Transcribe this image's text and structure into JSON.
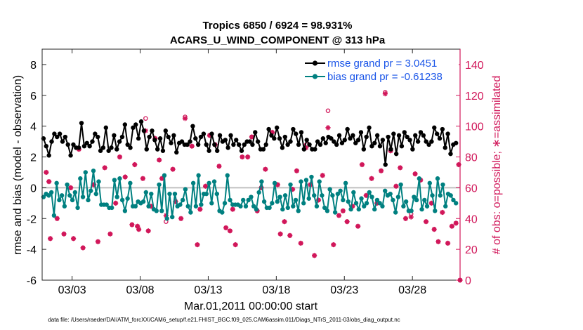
{
  "chart_data": {
    "type": "line",
    "title_line1": "Tropics 6850 / 6924 = 98.931%",
    "title_line2": "ACARS_U_WIND_COMPONENT @ 313 hPa",
    "xlabel": "Mar.01,2011 00:00:00 start",
    "ylabel_left": "rmse and bias (model - observation)",
    "ylabel_right": "# of obs: o=possible; ∗=assimilated",
    "footer": "data file: /Users/raeder/DAI/ATM_forcXX/CAM6_setup/f.e21.FHIST_BGC.f09_025.CAM6assim.011/Diags_NTrS_2011-03/obs_diag_output.nc",
    "xlim": [
      0.8,
      31.5
    ],
    "ylim_left": [
      -6,
      9
    ],
    "ylim_right": [
      0,
      150
    ],
    "x_ticks": [
      3,
      8,
      13,
      18,
      23,
      28
    ],
    "x_tick_labels": [
      "03/03",
      "03/08",
      "03/13",
      "03/18",
      "03/23",
      "03/28"
    ],
    "y_ticks_left": [
      "-6",
      "-4",
      "-2",
      "0",
      "2",
      "4",
      "6",
      "8"
    ],
    "y_ticks_right": [
      "0",
      "20",
      "40",
      "60",
      "80",
      "100",
      "120",
      "140"
    ],
    "colors": {
      "rmse": "#000000",
      "bias": "#008080",
      "count": "#d1175a",
      "zero": "#c0c0c0",
      "legend_text": "#1a55e8"
    },
    "series": [
      {
        "name": "rmse grand pr = 3.0451",
        "values": [
          3.2,
          2.7,
          2.1,
          3.0,
          3.5,
          3.3,
          3.5,
          3.0,
          3.3,
          2.8,
          2.1,
          2.8,
          2.6,
          2.6,
          4.2,
          2.7,
          2.9,
          2.7,
          3.0,
          3.5,
          3.3,
          2.4,
          2.6,
          3.9,
          2.4,
          2.6,
          3.4,
          2.5,
          3.0,
          3.3,
          4.1,
          2.8,
          2.6,
          3.9,
          4.1,
          3.2,
          4.3,
          3.7,
          2.5,
          3.3,
          3.7,
          3.1,
          2.5,
          3.2,
          2.4,
          3.7,
          3.3,
          2.9,
          3.4,
          2.3,
          2.9,
          3.0,
          2.8,
          2.8,
          3.0,
          4.0,
          3.2,
          2.8,
          3.3,
          3.5,
          2.8,
          2.4,
          3.5,
          2.8,
          2.4,
          3.4,
          3.0,
          3.1,
          2.6,
          3.4,
          2.8,
          3.1,
          2.8,
          2.4,
          2.8,
          3.0,
          3.0,
          2.8,
          3.6,
          3.0,
          2.5,
          2.5,
          2.8,
          3.8,
          3.4,
          3.2,
          3.9,
          3.2,
          2.6,
          3.3,
          2.8,
          3.0,
          3.8,
          3.5,
          2.8,
          3.6,
          2.5,
          3.1,
          2.8,
          2.5,
          2.5,
          3.0,
          2.8,
          3.2,
          2.9,
          3.3,
          3.2,
          3.0,
          2.8,
          3.4,
          2.9,
          3.1,
          3.8,
          3.2,
          3.4,
          2.9,
          3.1,
          3.6,
          2.5,
          3.3,
          3.9,
          2.7,
          2.9,
          3.4,
          2.7,
          3.1,
          1.5,
          3.3,
          2.5,
          3.5,
          2.2,
          3.4,
          2.7,
          3.6,
          3.3,
          3.1,
          2.5,
          3.4,
          3.0,
          3.6,
          3.4,
          3.0,
          2.8,
          3.0,
          3.9,
          3.5,
          3.2,
          3.8,
          2.6,
          3.5,
          2.2,
          2.8,
          2.9
        ]
      },
      {
        "name": "bias grand pr = -0.61238",
        "values": [
          -0.6,
          -0.4,
          -0.5,
          -0.3,
          -1.8,
          0.3,
          -0.8,
          -0.5,
          -1.2,
          0.2,
          -0.5,
          -0.8,
          -0.3,
          -1.3,
          0.6,
          -0.6,
          1.0,
          -0.8,
          -0.2,
          1.1,
          -0.4,
          0.4,
          -1.1,
          -1.1,
          -1.1,
          -1.3,
          -1.3,
          0.5,
          -0.6,
          0.6,
          -0.8,
          -1.5,
          -0.7,
          0.3,
          -1.2,
          -1.2,
          -0.9,
          -1.0,
          -0.9,
          -0.3,
          -1.2,
          -0.4,
          -1.4,
          -1.5,
          0.2,
          -1.5,
          0.8,
          -2.0,
          -0.4,
          -1.9,
          -0.4,
          -1.2,
          -1.1,
          -0.8,
          -0.1,
          -1.2,
          -1.6,
          0.3,
          -1.2,
          0.8,
          -1.1,
          -0.4,
          -0.4,
          0.3,
          -1.0,
          0.4,
          -0.4,
          -1.5,
          -1.6,
          -1.0,
          0.8,
          -0.8,
          -1.1,
          -1.1,
          -1.1,
          -1.2,
          -0.8,
          -1.2,
          -0.8,
          -0.6,
          -1.2,
          -1.4,
          -0.3,
          0.4,
          -0.9,
          -1.3,
          -1.3,
          -1.0,
          0.3,
          -0.9,
          -0.6,
          -1.4,
          -0.5,
          -1.3,
          0.2,
          -1.2,
          -0.8,
          -1.5,
          0.4,
          -1.0,
          0.5,
          -0.7,
          0.7,
          -0.5,
          -1.2,
          0.4,
          -0.5,
          -1.3,
          -1.5,
          -0.1,
          -0.5,
          -1.6,
          -0.4,
          -0.2,
          -0.8,
          0.3,
          -0.9,
          -1.4,
          -0.3,
          -1.0,
          -1.4,
          -0.7,
          -1.2,
          -1.0,
          -0.3,
          -0.6,
          -1.4,
          -0.8,
          -1.0,
          -1.2,
          -0.2,
          -0.5,
          -0.4,
          -0.8,
          -1.6,
          -0.6,
          0.2,
          -1.2,
          -0.9,
          -1.5,
          -1.5,
          -0.6,
          -0.8,
          0.6,
          -1.4,
          -0.8,
          -1.2,
          0.3,
          -0.5,
          -1.5,
          0.6,
          -0.5,
          0.2,
          -1.2,
          -0.4,
          -0.5,
          -0.8,
          -1.0
        ]
      }
    ],
    "obs_assimilated": [
      [
        1.1,
        70
      ],
      [
        1.3,
        64
      ],
      [
        1.4,
        27
      ],
      [
        1.9,
        40
      ],
      [
        2.4,
        30
      ],
      [
        2.9,
        60
      ],
      [
        3.1,
        27
      ],
      [
        3.5,
        85
      ],
      [
        3.8,
        21
      ],
      [
        4.6,
        62
      ],
      [
        4.9,
        25
      ],
      [
        5.4,
        73
      ],
      [
        5.8,
        30
      ],
      [
        6.2,
        50
      ],
      [
        6.5,
        80
      ],
      [
        6.9,
        67
      ],
      [
        7.4,
        36
      ],
      [
        7.6,
        75
      ],
      [
        7.8,
        35
      ],
      [
        7.9,
        33
      ],
      [
        8.2,
        66
      ],
      [
        8.4,
        97
      ],
      [
        8.6,
        32
      ],
      [
        8.8,
        48
      ],
      [
        9.1,
        92
      ],
      [
        9.4,
        78
      ],
      [
        9.6,
        66
      ],
      [
        9.9,
        42
      ],
      [
        10.4,
        72
      ],
      [
        10.6,
        51
      ],
      [
        11.0,
        40
      ],
      [
        11.3,
        105
      ],
      [
        11.8,
        87
      ],
      [
        12.2,
        23
      ],
      [
        12.4,
        46
      ],
      [
        12.8,
        61
      ],
      [
        13.1,
        94
      ],
      [
        13.5,
        88
      ],
      [
        13.8,
        74
      ],
      [
        14.3,
        34
      ],
      [
        14.6,
        32
      ],
      [
        14.8,
        46
      ],
      [
        15.0,
        23
      ],
      [
        15.5,
        80
      ],
      [
        15.9,
        80
      ],
      [
        16.2,
        93
      ],
      [
        16.6,
        45
      ],
      [
        16.9,
        60
      ],
      [
        17.2,
        72
      ],
      [
        17.7,
        96
      ],
      [
        18.1,
        62
      ],
      [
        18.3,
        30
      ],
      [
        18.6,
        38
      ],
      [
        19.0,
        29
      ],
      [
        19.2,
        59
      ],
      [
        19.5,
        71
      ],
      [
        19.8,
        24
      ],
      [
        20.2,
        86
      ],
      [
        20.5,
        62
      ],
      [
        20.8,
        16
      ],
      [
        21.1,
        52
      ],
      [
        21.4,
        68
      ],
      [
        21.8,
        99
      ],
      [
        22.2,
        23
      ],
      [
        22.6,
        42
      ],
      [
        22.9,
        45
      ],
      [
        23.2,
        38
      ],
      [
        23.6,
        48
      ],
      [
        24.0,
        35
      ],
      [
        24.3,
        75
      ],
      [
        24.6,
        55
      ],
      [
        25.0,
        66
      ],
      [
        25.4,
        50
      ],
      [
        25.7,
        71
      ],
      [
        26.0,
        121
      ],
      [
        26.4,
        84
      ],
      [
        26.8,
        61
      ],
      [
        27.1,
        73
      ],
      [
        27.5,
        40
      ],
      [
        27.9,
        41
      ],
      [
        28.2,
        69
      ],
      [
        28.6,
        65
      ],
      [
        29.0,
        38
      ],
      [
        29.4,
        50
      ],
      [
        29.6,
        33
      ],
      [
        29.9,
        25
      ],
      [
        30.2,
        44
      ],
      [
        30.6,
        24
      ],
      [
        30.9,
        35
      ],
      [
        31.2,
        37
      ],
      [
        31.4,
        75
      ],
      [
        31.5,
        0
      ]
    ],
    "obs_possible": [
      [
        1.1,
        70
      ],
      [
        1.3,
        64
      ],
      [
        1.4,
        27
      ],
      [
        1.9,
        40
      ],
      [
        2.4,
        30
      ],
      [
        2.9,
        60
      ],
      [
        3.1,
        27
      ],
      [
        3.5,
        85
      ],
      [
        3.8,
        21
      ],
      [
        4.6,
        62
      ],
      [
        4.9,
        25
      ],
      [
        5.4,
        73
      ],
      [
        5.8,
        30
      ],
      [
        6.2,
        50
      ],
      [
        6.5,
        80
      ],
      [
        6.9,
        67
      ],
      [
        7.4,
        36
      ],
      [
        7.6,
        75
      ],
      [
        7.8,
        35
      ],
      [
        7.9,
        33
      ],
      [
        8.2,
        66
      ],
      [
        8.4,
        105
      ],
      [
        8.6,
        32
      ],
      [
        8.8,
        48
      ],
      [
        9.1,
        92
      ],
      [
        9.4,
        78
      ],
      [
        9.6,
        66
      ],
      [
        9.9,
        38
      ],
      [
        10.4,
        72
      ],
      [
        10.6,
        51
      ],
      [
        11.0,
        40
      ],
      [
        11.3,
        106
      ],
      [
        11.8,
        87
      ],
      [
        12.2,
        23
      ],
      [
        12.4,
        46
      ],
      [
        12.8,
        61
      ],
      [
        13.1,
        94
      ],
      [
        13.5,
        88
      ],
      [
        13.8,
        74
      ],
      [
        14.3,
        34
      ],
      [
        14.6,
        32
      ],
      [
        14.8,
        46
      ],
      [
        15.0,
        23
      ],
      [
        15.5,
        80
      ],
      [
        15.9,
        80
      ],
      [
        16.2,
        93
      ],
      [
        16.6,
        45
      ],
      [
        16.9,
        60
      ],
      [
        17.2,
        72
      ],
      [
        17.7,
        96
      ],
      [
        18.1,
        62
      ],
      [
        18.3,
        30
      ],
      [
        18.6,
        38
      ],
      [
        19.0,
        29
      ],
      [
        19.2,
        59
      ],
      [
        19.5,
        71
      ],
      [
        19.8,
        24
      ],
      [
        20.2,
        88
      ],
      [
        20.5,
        62
      ],
      [
        20.8,
        16
      ],
      [
        21.1,
        52
      ],
      [
        21.4,
        68
      ],
      [
        21.8,
        110
      ],
      [
        22.2,
        23
      ],
      [
        22.6,
        42
      ],
      [
        22.9,
        45
      ],
      [
        23.2,
        38
      ],
      [
        23.6,
        48
      ],
      [
        24.0,
        35
      ],
      [
        24.3,
        75
      ],
      [
        24.6,
        55
      ],
      [
        25.0,
        66
      ],
      [
        25.4,
        50
      ],
      [
        25.7,
        71
      ],
      [
        26.0,
        122
      ],
      [
        26.4,
        84
      ],
      [
        26.8,
        61
      ],
      [
        27.1,
        73
      ],
      [
        27.5,
        40
      ],
      [
        27.9,
        43
      ],
      [
        28.2,
        69
      ],
      [
        28.6,
        65
      ],
      [
        29.0,
        38
      ],
      [
        29.4,
        50
      ],
      [
        29.6,
        33
      ],
      [
        29.9,
        25
      ],
      [
        30.2,
        44
      ],
      [
        30.6,
        24
      ],
      [
        30.9,
        35
      ],
      [
        31.2,
        37
      ],
      [
        31.4,
        75
      ],
      [
        31.5,
        0
      ]
    ]
  }
}
